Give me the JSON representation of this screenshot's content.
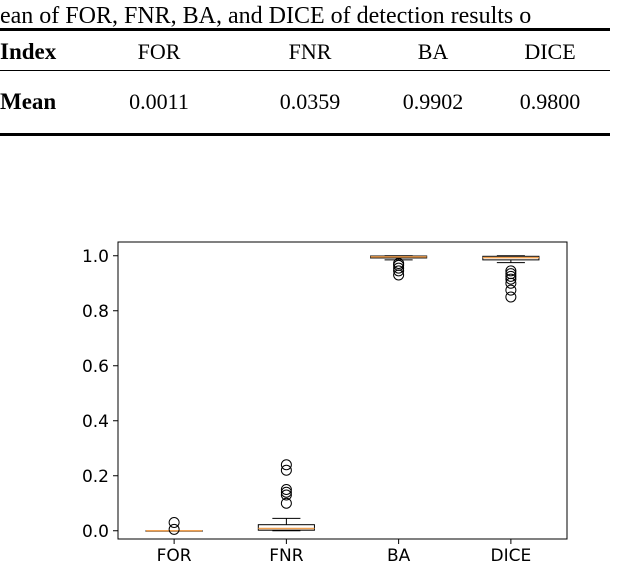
{
  "caption": "ean of FOR, FNR, BA, and DICE of detection results o",
  "table": {
    "header": {
      "label": "Index",
      "cols": [
        "FOR",
        "FNR",
        "BA",
        "DICE"
      ]
    },
    "row": {
      "label": "Mean",
      "values": [
        "0.0011",
        "0.0359",
        "0.9902",
        "0.9800"
      ]
    }
  },
  "chart_data": {
    "type": "box",
    "categories": [
      "FOR",
      "FNR",
      "BA",
      "DICE"
    ],
    "ylim": [
      -0.03,
      1.05
    ],
    "yticks": [
      "0.0",
      "0.2",
      "0.4",
      "0.6",
      "0.8",
      "1.0"
    ],
    "grid": false,
    "boxes": [
      {
        "name": "FOR",
        "q1": 0.0,
        "median": 0.0,
        "q3": 0.0,
        "whisker_low": 0.0,
        "whisker_high": 0.0,
        "outliers": [
          0.03,
          0.005
        ]
      },
      {
        "name": "FNR",
        "q1": 0.002,
        "median": 0.008,
        "q3": 0.022,
        "whisker_low": 0.0,
        "whisker_high": 0.045,
        "outliers": [
          0.1,
          0.13,
          0.14,
          0.15,
          0.22,
          0.24
        ]
      },
      {
        "name": "BA",
        "q1": 0.992,
        "median": 0.996,
        "q3": 0.999,
        "whisker_low": 0.985,
        "whisker_high": 1.0,
        "outliers": [
          0.93,
          0.945,
          0.955,
          0.965,
          0.972
        ]
      },
      {
        "name": "DICE",
        "q1": 0.985,
        "median": 0.993,
        "q3": 0.998,
        "whisker_low": 0.975,
        "whisker_high": 1.0,
        "outliers": [
          0.85,
          0.875,
          0.9,
          0.915,
          0.925,
          0.935,
          0.945
        ]
      }
    ],
    "colors": {
      "box": "#000000",
      "median": "#f0a050",
      "flier": "#000000"
    }
  }
}
